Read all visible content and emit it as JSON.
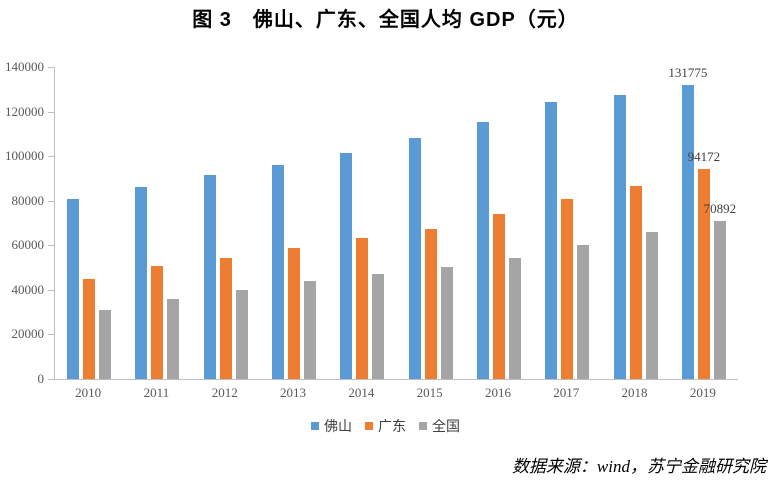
{
  "title": "图 3　佛山、广东、全国人均 GDP（元）",
  "source": "数据来源：wind，苏宁金融研究院",
  "colors": {
    "foshan_blue": "#5B9BD5",
    "guangdong_orange": "#ED7D31",
    "national_gray": "#A5A5A5",
    "axis_line": "#BFBFBF",
    "axis_text": "#595959",
    "data_label_text": "#404040"
  },
  "chart_data": {
    "type": "bar",
    "title": "图 3　佛山、广东、全国人均 GDP（元）",
    "categories": [
      "2010",
      "2011",
      "2012",
      "2013",
      "2014",
      "2015",
      "2016",
      "2017",
      "2018",
      "2019"
    ],
    "series": [
      {
        "name": "佛山",
        "color": "#5B9BD5",
        "values": [
          80700,
          86000,
          91500,
          96200,
          101500,
          108000,
          115500,
          124300,
          127400,
          131775
        ]
      },
      {
        "name": "广东",
        "color": "#ED7D31",
        "values": [
          44800,
          50800,
          54500,
          58800,
          63300,
          67500,
          74200,
          81000,
          86400,
          94172
        ]
      },
      {
        "name": "全国",
        "color": "#A5A5A5",
        "values": [
          30900,
          36100,
          40000,
          44000,
          47100,
          50100,
          54200,
          60000,
          66000,
          70892
        ]
      }
    ],
    "data_labels": [
      {
        "series": 0,
        "index": 9,
        "text": "131775"
      },
      {
        "series": 1,
        "index": 9,
        "text": "94172"
      },
      {
        "series": 2,
        "index": 9,
        "text": "70892"
      }
    ],
    "xlabel": "",
    "ylabel": "",
    "ylim": [
      0,
      140000
    ],
    "y_tick_step": 20000,
    "y_ticks": [
      "0",
      "20000",
      "40000",
      "60000",
      "80000",
      "100000",
      "120000",
      "140000"
    ],
    "grid": false,
    "legend_position": "bottom"
  }
}
